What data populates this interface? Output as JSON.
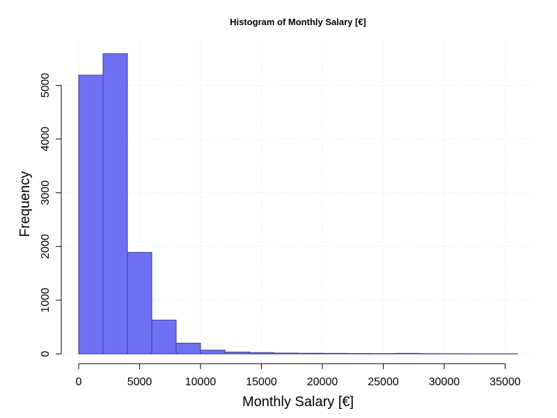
{
  "chart_data": {
    "type": "bar",
    "title": "Histogram of Monthly Salary [€]",
    "xlabel": "Monthly Salary [€]",
    "ylabel": "Frequency",
    "bin_edges": [
      0,
      2000,
      4000,
      6000,
      8000,
      10000,
      12000,
      14000,
      16000,
      18000,
      20000,
      22000,
      24000,
      26000,
      28000,
      30000,
      32000,
      34000,
      36000
    ],
    "values": [
      5190,
      5590,
      1890,
      630,
      200,
      70,
      35,
      25,
      15,
      12,
      10,
      8,
      6,
      10,
      5,
      4,
      3,
      3
    ],
    "xlim": [
      0,
      36000
    ],
    "ylim": [
      0,
      5590
    ],
    "x_ticks": [
      0,
      5000,
      10000,
      15000,
      20000,
      25000,
      30000,
      35000
    ],
    "y_ticks": [
      0,
      1000,
      2000,
      3000,
      4000,
      5000
    ],
    "grid": true,
    "bar_color": "#7070f5",
    "bar_edge_color": "#3a3a8c"
  }
}
